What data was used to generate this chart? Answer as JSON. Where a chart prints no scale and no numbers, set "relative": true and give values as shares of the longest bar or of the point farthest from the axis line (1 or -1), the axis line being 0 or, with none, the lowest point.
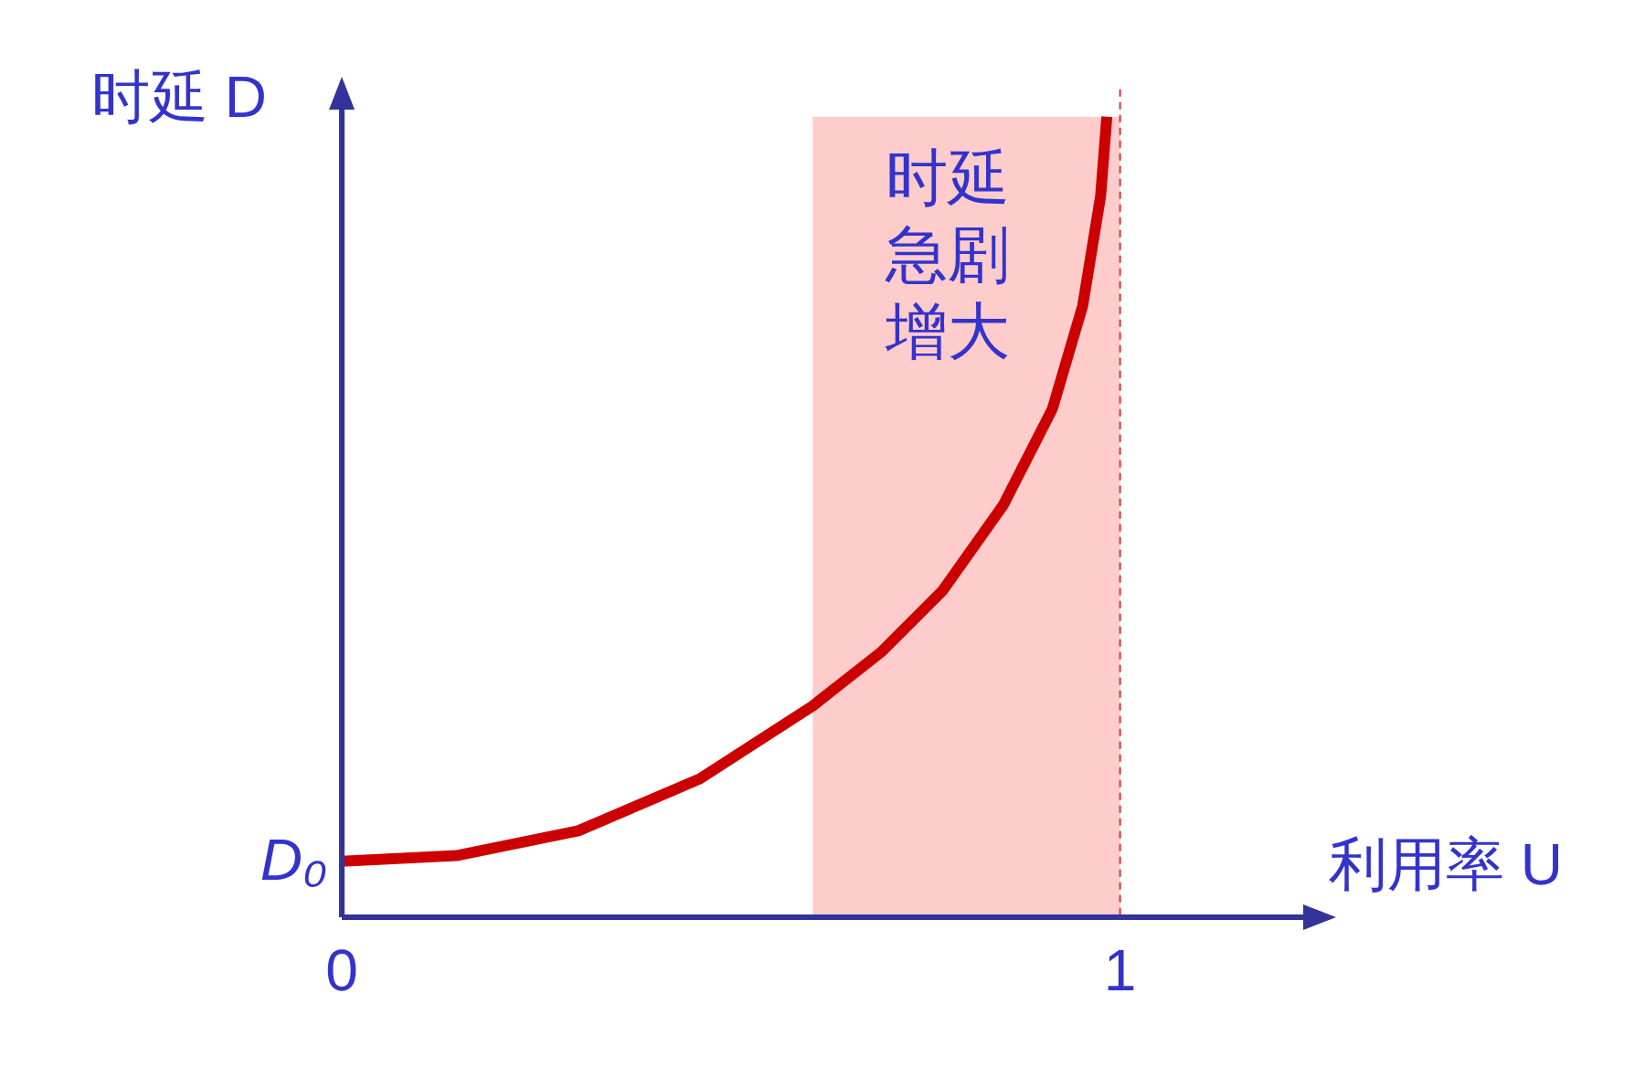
{
  "chart_data": {
    "type": "line",
    "xlabel": "利用率 U",
    "ylabel": "时延 D",
    "relative": true,
    "xlim": [
      0,
      1.24
    ],
    "xticks": [
      0,
      1
    ],
    "series": [
      {
        "color": "#cc0000",
        "x": [
          0,
          0.148,
          0.304,
          0.46,
          0.605,
          0.694,
          0.772,
          0.85,
          0.913,
          0.952,
          0.975,
          0.983
        ],
        "values": [
          0.07,
          0.077,
          0.108,
          0.173,
          0.264,
          0.332,
          0.408,
          0.515,
          0.635,
          0.764,
          0.901,
          1
        ]
      }
    ],
    "bands": [
      {
        "axis": "x",
        "from": 0.605,
        "to": 1,
        "label": "时延急剧增大",
        "color": "#ffcccc"
      }
    ],
    "ref_lines": [
      {
        "axis": "x",
        "value": 1,
        "color": "#dd3333",
        "line_style": "dashed"
      }
    ],
    "annotations": [
      {
        "text": "D₀",
        "x": 0,
        "y": 0.07
      }
    ],
    "grid": false,
    "marker": "none",
    "line_style": "solid"
  }
}
